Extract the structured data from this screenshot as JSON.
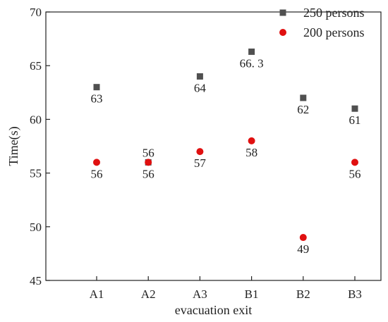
{
  "chart_data": {
    "type": "scatter",
    "categories": [
      "A1",
      "A2",
      "A3",
      "B1",
      "B2",
      "B3"
    ],
    "series": [
      {
        "name": "250 persons",
        "values": [
          63,
          56,
          64,
          66.3,
          62,
          61
        ],
        "labels": [
          "63",
          "56",
          "64",
          "66. 3",
          "62",
          "61"
        ],
        "label_position": [
          "below",
          "above",
          "below",
          "below",
          "below",
          "below"
        ],
        "color": "#505050",
        "marker": "square"
      },
      {
        "name": "200 persons",
        "values": [
          56,
          56,
          57,
          58,
          49,
          56
        ],
        "labels": [
          "56",
          "56",
          "57",
          "58",
          "49",
          "56"
        ],
        "label_position": [
          "below",
          "below",
          "below",
          "below",
          "below",
          "below"
        ],
        "color": "#e01010",
        "marker": "circle"
      }
    ],
    "xlabel": "evacuation exit",
    "ylabel": "Time(s)",
    "ylim": [
      45,
      70
    ],
    "yticks": [
      45,
      50,
      55,
      60,
      65,
      70
    ],
    "grid": false,
    "legend_position": "top-right"
  }
}
